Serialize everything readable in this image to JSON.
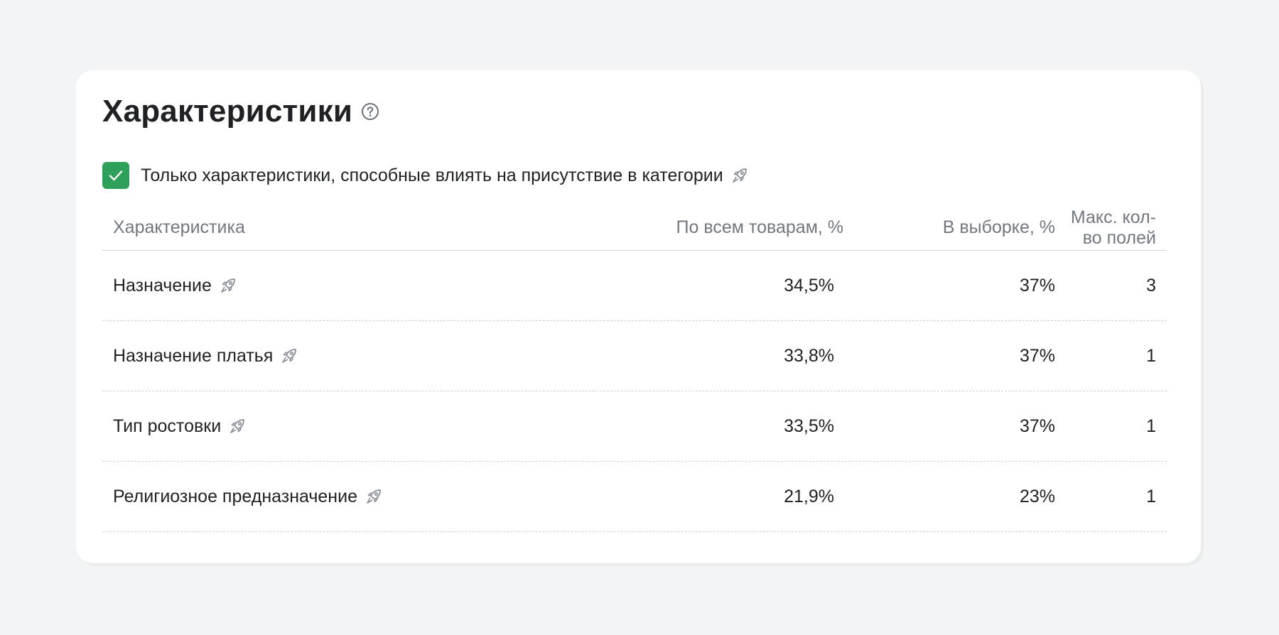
{
  "card": {
    "title": "Характеристики",
    "help_icon": "question-circle-icon",
    "filter": {
      "checked": true,
      "label": "Только характеристики, способные влиять на присутствие в категории",
      "icon": "rocket-icon"
    }
  },
  "table": {
    "headers": {
      "name": "Характеристика",
      "all_products": "По всем товарам, %",
      "sample": "В выборке, %",
      "max_fields": "Макс. кол-во полей"
    },
    "rows": [
      {
        "name": "Назначение",
        "all_products": "34,5%",
        "sample": "37%",
        "max_fields": "3"
      },
      {
        "name": "Назначение платья",
        "all_products": "33,8%",
        "sample": "37%",
        "max_fields": "1"
      },
      {
        "name": "Тип ростовки",
        "all_products": "33,5%",
        "sample": "37%",
        "max_fields": "1"
      },
      {
        "name": "Религиозное предназначение",
        "all_products": "21,9%",
        "sample": "23%",
        "max_fields": "1"
      }
    ]
  },
  "colors": {
    "accent_green": "#2fa05a",
    "header_text": "#737780",
    "icon_gray": "#8a8e96"
  }
}
